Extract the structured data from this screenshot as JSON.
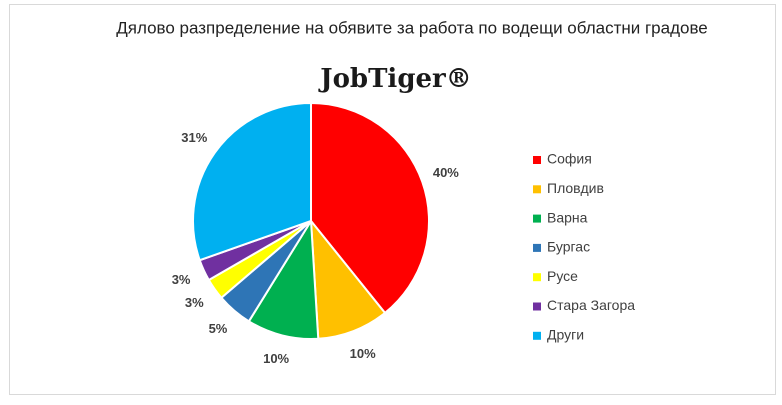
{
  "chart_data": {
    "type": "pie",
    "title": "Дялово разпределение на обявите за работа по водещи областни градове",
    "logo": "JobTiger®",
    "categories": [
      "София",
      "Пловдив",
      "Варна",
      "Бургас",
      "Русе",
      "Стара Загора",
      "Други"
    ],
    "values": [
      40,
      10,
      10,
      5,
      3,
      3,
      31
    ],
    "value_labels": [
      "40%",
      "10%",
      "10%",
      "5%",
      "3%",
      "3%",
      "31%"
    ],
    "colors": [
      "#ff0000",
      "#ffc000",
      "#00b050",
      "#2e75b6",
      "#ffff00",
      "#7030a0",
      "#00b0f0"
    ],
    "legend": "right"
  }
}
